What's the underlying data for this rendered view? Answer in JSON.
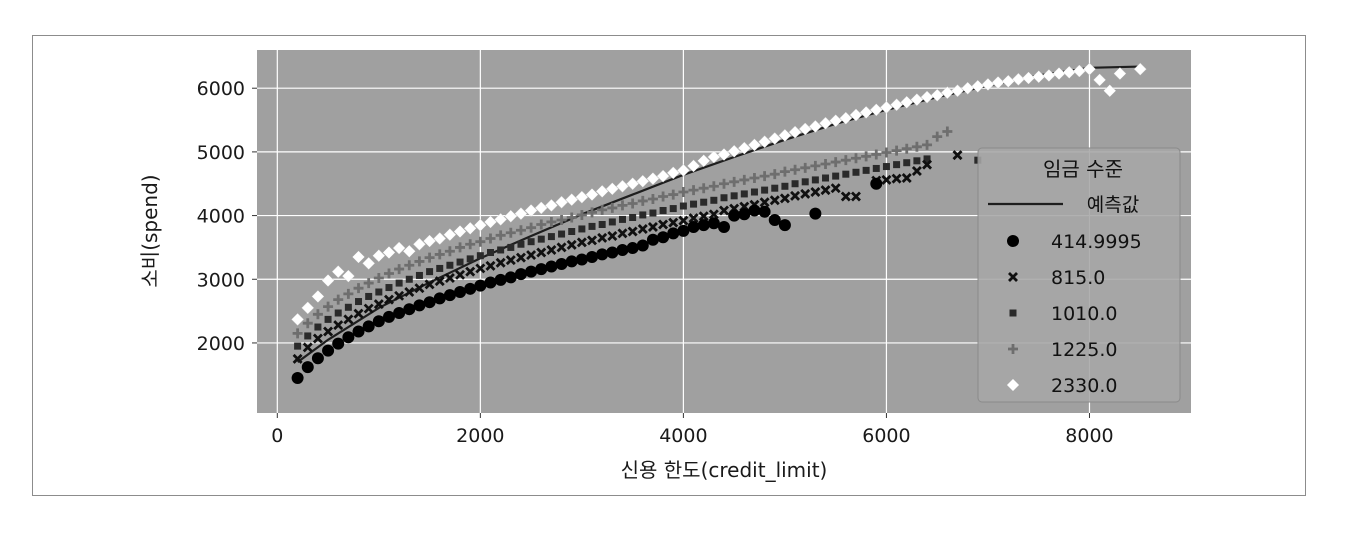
{
  "chart_data": {
    "type": "scatter",
    "xlabel": "신용 한도(credit_limit)",
    "ylabel": "소비(spend)",
    "xlim": [
      -200,
      9000
    ],
    "ylim": [
      900,
      6600
    ],
    "xticks": [
      0,
      2000,
      4000,
      6000,
      8000
    ],
    "yticks": [
      2000,
      3000,
      4000,
      5000,
      6000
    ],
    "xtick_labels": [
      "0",
      "2000",
      "4000",
      "6000",
      "8000"
    ],
    "ytick_labels": [
      "2000",
      "3000",
      "4000",
      "5000",
      "6000"
    ],
    "grid": true,
    "legend": {
      "title": "임금 수준",
      "position": "right"
    },
    "background": "#a0a0a0",
    "prediction": {
      "name": "예측값",
      "color": "#1e1e1e",
      "x": [
        200,
        500,
        1000,
        1500,
        2000,
        2500,
        3000,
        3500,
        4000,
        4500,
        5000,
        5500,
        6000,
        6500,
        7000,
        7500,
        8000,
        8500
      ],
      "y": [
        1700,
        2050,
        2550,
        2950,
        3330,
        3680,
        4020,
        4330,
        4640,
        4920,
        5190,
        5440,
        5660,
        5860,
        6040,
        6200,
        6320,
        6340
      ]
    },
    "series": [
      {
        "name": "414.9995",
        "marker": "circle",
        "color": "#000000",
        "x": [
          200,
          300,
          400,
          500,
          600,
          700,
          800,
          900,
          1000,
          1100,
          1200,
          1300,
          1400,
          1500,
          1600,
          1700,
          1800,
          1900,
          2000,
          2100,
          2200,
          2300,
          2400,
          2500,
          2600,
          2700,
          2800,
          2900,
          3000,
          3100,
          3200,
          3300,
          3400,
          3500,
          3600,
          3700,
          3800,
          3900,
          4000,
          4100,
          4200,
          4300,
          4400,
          4500,
          4600,
          4700,
          4800,
          4900,
          5000,
          5300,
          5900
        ],
        "y": [
          1450,
          1620,
          1760,
          1880,
          1990,
          2090,
          2180,
          2260,
          2340,
          2410,
          2470,
          2530,
          2590,
          2640,
          2700,
          2750,
          2800,
          2850,
          2900,
          2950,
          2990,
          3030,
          3080,
          3120,
          3160,
          3200,
          3240,
          3280,
          3310,
          3350,
          3390,
          3420,
          3460,
          3490,
          3530,
          3620,
          3660,
          3720,
          3760,
          3820,
          3850,
          3880,
          3820,
          4000,
          4020,
          4080,
          4060,
          3930,
          3850,
          4030,
          4500
        ]
      },
      {
        "name": "815.0",
        "marker": "x",
        "color": "#101010",
        "x": [
          200,
          300,
          400,
          500,
          600,
          700,
          800,
          900,
          1000,
          1100,
          1200,
          1300,
          1400,
          1500,
          1600,
          1700,
          1800,
          1900,
          2000,
          2100,
          2200,
          2300,
          2400,
          2500,
          2600,
          2700,
          2800,
          2900,
          3000,
          3100,
          3200,
          3300,
          3400,
          3500,
          3600,
          3700,
          3800,
          3900,
          4000,
          4100,
          4200,
          4300,
          4400,
          4500,
          4600,
          4700,
          4800,
          4900,
          5000,
          5100,
          5200,
          5300,
          5400,
          5500,
          5600,
          5700,
          5900,
          6000,
          6100,
          6200,
          6300,
          6400,
          6700
        ],
        "y": [
          1750,
          1930,
          2070,
          2180,
          2280,
          2370,
          2460,
          2540,
          2610,
          2680,
          2740,
          2800,
          2860,
          2920,
          2970,
          3020,
          3070,
          3120,
          3170,
          3210,
          3260,
          3300,
          3340,
          3380,
          3420,
          3460,
          3500,
          3540,
          3580,
          3610,
          3650,
          3680,
          3720,
          3750,
          3790,
          3820,
          3860,
          3890,
          3920,
          3960,
          3990,
          4020,
          4080,
          4110,
          4140,
          4170,
          4210,
          4240,
          4270,
          4310,
          4340,
          4370,
          4400,
          4430,
          4300,
          4300,
          4550,
          4560,
          4580,
          4590,
          4700,
          4800,
          4950
        ]
      },
      {
        "name": "1010.0",
        "marker": "square",
        "color": "#2a2a2a",
        "x": [
          200,
          300,
          400,
          500,
          600,
          700,
          800,
          900,
          1000,
          1100,
          1200,
          1300,
          1400,
          1500,
          1600,
          1700,
          1800,
          1900,
          2000,
          2100,
          2200,
          2300,
          2400,
          2500,
          2600,
          2700,
          2800,
          2900,
          3000,
          3100,
          3200,
          3300,
          3400,
          3500,
          3600,
          3700,
          3800,
          3900,
          4000,
          4100,
          4200,
          4300,
          4400,
          4500,
          4600,
          4700,
          4800,
          4900,
          5000,
          5100,
          5200,
          5300,
          5400,
          5500,
          5600,
          5700,
          5800,
          5900,
          6000,
          6100,
          6200,
          6300,
          6400,
          6900
        ],
        "y": [
          1950,
          2110,
          2250,
          2370,
          2470,
          2560,
          2650,
          2730,
          2800,
          2870,
          2940,
          3000,
          3060,
          3120,
          3170,
          3220,
          3270,
          3320,
          3370,
          3420,
          3460,
          3500,
          3550,
          3590,
          3630,
          3670,
          3710,
          3750,
          3790,
          3830,
          3860,
          3900,
          3940,
          3970,
          4010,
          4040,
          4080,
          4110,
          4150,
          4180,
          4210,
          4240,
          4280,
          4310,
          4340,
          4370,
          4400,
          4430,
          4460,
          4500,
          4530,
          4560,
          4590,
          4620,
          4650,
          4680,
          4710,
          4740,
          4770,
          4800,
          4830,
          4860,
          4890,
          4870
        ]
      },
      {
        "name": "1225.0",
        "marker": "plus",
        "color": "#6e6e6e",
        "x": [
          200,
          300,
          400,
          500,
          600,
          700,
          800,
          900,
          1000,
          1100,
          1200,
          1300,
          1400,
          1500,
          1600,
          1700,
          1800,
          1900,
          2000,
          2100,
          2200,
          2300,
          2400,
          2500,
          2600,
          2700,
          2800,
          2900,
          3000,
          3100,
          3200,
          3300,
          3400,
          3500,
          3600,
          3700,
          3800,
          3900,
          4000,
          4100,
          4200,
          4300,
          4400,
          4500,
          4600,
          4700,
          4800,
          4900,
          5000,
          5100,
          5200,
          5300,
          5400,
          5500,
          5600,
          5700,
          5800,
          5900,
          6000,
          6100,
          6200,
          6300,
          6400,
          6500,
          6600
        ],
        "y": [
          2150,
          2310,
          2450,
          2570,
          2680,
          2770,
          2860,
          2940,
          3020,
          3090,
          3160,
          3220,
          3280,
          3340,
          3390,
          3440,
          3500,
          3550,
          3590,
          3640,
          3690,
          3730,
          3770,
          3810,
          3860,
          3900,
          3930,
          3970,
          4010,
          4050,
          4090,
          4120,
          4160,
          4190,
          4230,
          4260,
          4300,
          4330,
          4370,
          4400,
          4430,
          4460,
          4500,
          4530,
          4560,
          4590,
          4620,
          4650,
          4690,
          4720,
          4750,
          4780,
          4810,
          4840,
          4870,
          4900,
          4930,
          4960,
          4990,
          5020,
          5050,
          5080,
          5110,
          5240,
          5320
        ]
      },
      {
        "name": "2330.0",
        "marker": "diamond",
        "color": "#ffffff",
        "x": [
          200,
          300,
          400,
          500,
          600,
          700,
          800,
          900,
          1000,
          1100,
          1200,
          1300,
          1400,
          1500,
          1600,
          1700,
          1800,
          1900,
          2000,
          2100,
          2200,
          2300,
          2400,
          2500,
          2600,
          2700,
          2800,
          2900,
          3000,
          3100,
          3200,
          3300,
          3400,
          3500,
          3600,
          3700,
          3800,
          3900,
          4000,
          4100,
          4200,
          4300,
          4400,
          4500,
          4600,
          4700,
          4800,
          4900,
          5000,
          5100,
          5200,
          5300,
          5400,
          5500,
          5600,
          5700,
          5800,
          5900,
          6000,
          6100,
          6200,
          6300,
          6400,
          6500,
          6600,
          6700,
          6800,
          6900,
          7000,
          7100,
          7200,
          7300,
          7400,
          7500,
          7600,
          7700,
          7800,
          7900,
          8000,
          8100,
          8200,
          8300,
          8500
        ],
        "y": [
          2370,
          2550,
          2730,
          2980,
          3120,
          3050,
          3350,
          3250,
          3370,
          3420,
          3490,
          3440,
          3550,
          3600,
          3640,
          3700,
          3750,
          3800,
          3850,
          3900,
          3940,
          3990,
          4030,
          4080,
          4120,
          4160,
          4210,
          4250,
          4290,
          4330,
          4380,
          4420,
          4460,
          4500,
          4540,
          4580,
          4620,
          4670,
          4710,
          4780,
          4860,
          4920,
          4960,
          5010,
          5060,
          5110,
          5160,
          5210,
          5260,
          5310,
          5360,
          5400,
          5450,
          5490,
          5530,
          5580,
          5620,
          5660,
          5700,
          5740,
          5780,
          5820,
          5860,
          5890,
          5930,
          5960,
          6000,
          6030,
          6060,
          6090,
          6110,
          6140,
          6160,
          6180,
          6200,
          6230,
          6250,
          6270,
          6300,
          6130,
          5960,
          6230,
          6300
        ]
      }
    ]
  }
}
